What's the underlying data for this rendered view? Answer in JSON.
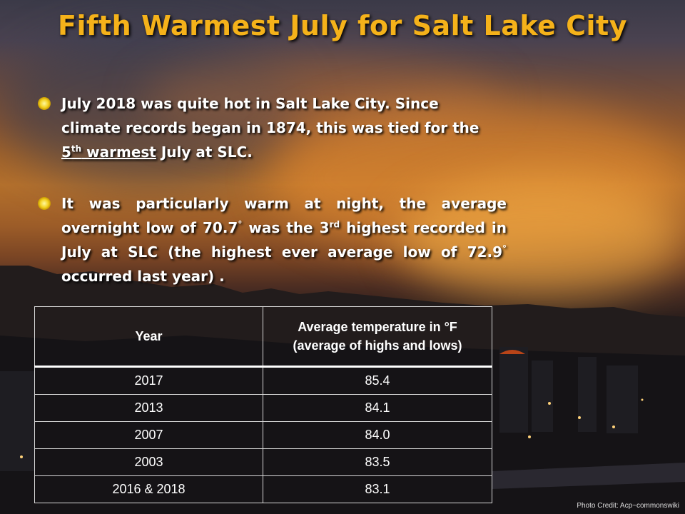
{
  "slide": {
    "title": "Fifth Warmest July for Salt Lake City",
    "bullet1": {
      "line1": "July 2018 was quite hot in Salt Lake City. Since",
      "line2": "climate records began in 1874, this was tied for the",
      "rank_num": "5",
      "rank_sup": "th",
      "rank_word": " warmest",
      "tail": " July at SLC."
    },
    "bullet2": {
      "part1": "It was particularly warm at night, the average overnight low of 70.7",
      "deg1": "°",
      "part2": " was the 3",
      "sup": "rd",
      "part3": " highest recorded in July at SLC (the highest ever average low of 72.9",
      "deg2": "°",
      "part4": " occurred last year) ."
    },
    "table": {
      "headers": [
        "Year",
        "Average temperature in °F",
        "(average of highs and lows)"
      ],
      "rows": [
        {
          "year": "2017",
          "temp": "85.4"
        },
        {
          "year": "2013",
          "temp": "84.1"
        },
        {
          "year": "2007",
          "temp": "84.0"
        },
        {
          "year": "2003",
          "temp": "83.5"
        },
        {
          "year": "2016 & 2018",
          "temp": "83.1"
        }
      ]
    },
    "credit": "Photo Credit: Acp~commonswiki",
    "colors": {
      "title": "#f5b21a",
      "text": "#ffffff",
      "bullet": "#f3d020"
    },
    "icons": {
      "bullet": "sun-icon"
    }
  }
}
